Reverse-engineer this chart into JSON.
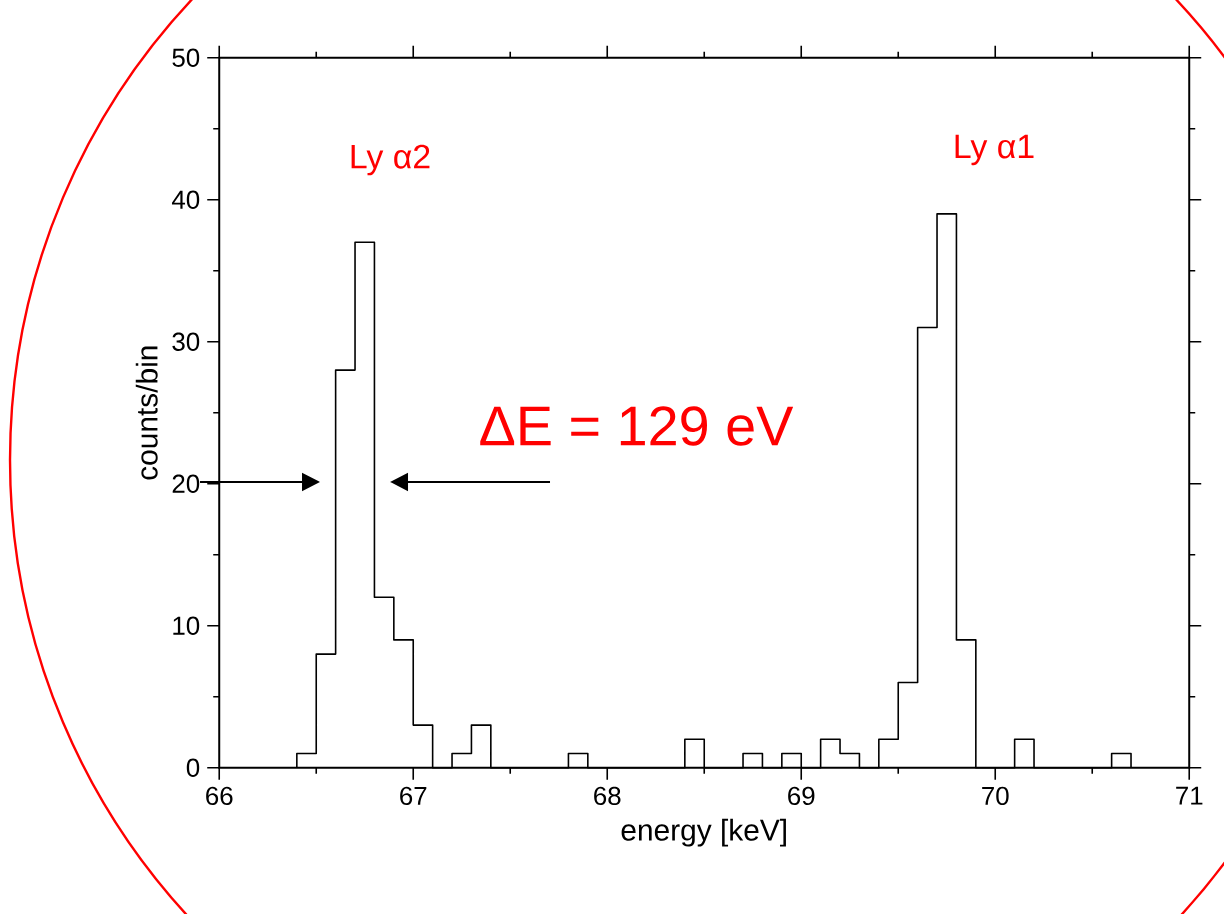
{
  "chart_data": {
    "type": "histogram",
    "xlabel": "energy [keV]",
    "ylabel": "counts/bin",
    "bins": [
      66.4,
      66.5,
      66.6,
      66.7,
      66.8,
      66.9,
      67.0,
      67.1,
      67.2,
      67.3,
      67.4,
      67.5,
      67.6,
      67.7,
      67.8,
      67.9,
      68.0,
      68.1,
      68.2,
      68.3,
      68.4,
      68.5,
      68.6,
      68.7,
      68.8,
      68.9,
      69.0,
      69.1,
      69.2,
      69.3,
      69.4,
      69.5,
      69.6,
      69.7,
      69.8,
      69.9,
      70.0,
      70.1,
      70.2,
      70.3,
      70.4,
      70.5,
      70.6,
      70.7
    ],
    "values": [
      1,
      8,
      28,
      37,
      12,
      9,
      3,
      0,
      1,
      3,
      0,
      0,
      0,
      0,
      1,
      0,
      0,
      0,
      0,
      0,
      2,
      0,
      0,
      1,
      0,
      1,
      0,
      2,
      1,
      0,
      2,
      6,
      31,
      39,
      9,
      0,
      0,
      2,
      0,
      0,
      0,
      0,
      1
    ],
    "color": "#000000",
    "xlim": [
      66,
      71
    ],
    "xticks": [
      66,
      67,
      68,
      69,
      70,
      71
    ],
    "ylim": [
      0,
      50
    ],
    "yticks": [
      0,
      10,
      20,
      30,
      40,
      50
    ],
    "grid": false,
    "annotations": [
      "Ly α2",
      "Ly α1",
      "ΔE = 129 eV"
    ]
  }
}
